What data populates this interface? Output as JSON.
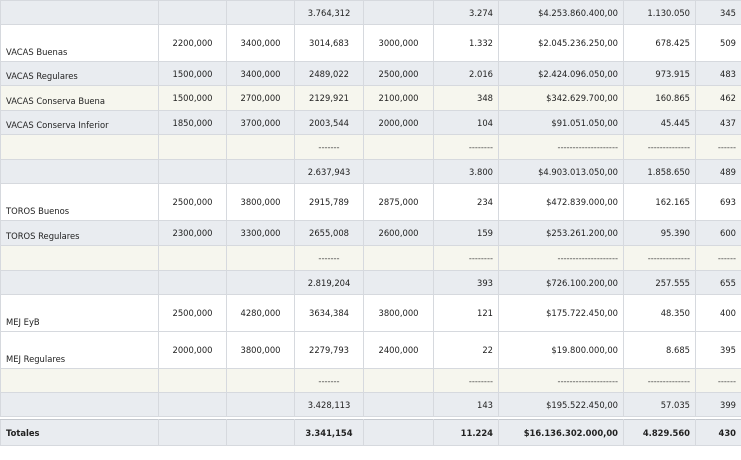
{
  "rows": [
    {
      "style": "grey",
      "h": 24,
      "label": "",
      "c1": "",
      "c2": "",
      "c3": "3.764,312",
      "c4": "",
      "c5": "3.274",
      "c6": "$4.253.860.400,00",
      "c7": "1.130.050",
      "c8": "345"
    },
    {
      "style": "white",
      "h": 37,
      "label": "VACAS Buenas",
      "c1": "2200,000",
      "c2": "3400,000",
      "c3": "3014,683",
      "c4": "3000,000",
      "c5": "1.332",
      "c6": "$2.045.236.250,00",
      "c7": "678.425",
      "c8": "509"
    },
    {
      "style": "grey",
      "h": 24,
      "label": "VACAS Regulares",
      "c1": "1500,000",
      "c2": "3400,000",
      "c3": "2489,022",
      "c4": "2500,000",
      "c5": "2.016",
      "c6": "$2.424.096.050,00",
      "c7": "973.915",
      "c8": "483"
    },
    {
      "style": "cream",
      "h": 25,
      "label": "VACAS Conserva Buena",
      "c1": "1500,000",
      "c2": "2700,000",
      "c3": "2129,921",
      "c4": "2100,000",
      "c5": "348",
      "c6": "$342.629.700,00",
      "c7": "160.865",
      "c8": "462"
    },
    {
      "style": "grey",
      "h": 24,
      "label": "VACAS Conserva Inferior",
      "c1": "1850,000",
      "c2": "3700,000",
      "c3": "2003,544",
      "c4": "2000,000",
      "c5": "104",
      "c6": "$91.051.050,00",
      "c7": "45.445",
      "c8": "437"
    },
    {
      "style": "cream",
      "h": 25,
      "sep": true,
      "label": "",
      "c1": "",
      "c2": "",
      "c3": "-------",
      "c4": "",
      "c5": "--------",
      "c6": "--------------------",
      "c7": "--------------",
      "c8": "------"
    },
    {
      "style": "grey",
      "h": 24,
      "label": "",
      "c1": "",
      "c2": "",
      "c3": "2.637,943",
      "c4": "",
      "c5": "3.800",
      "c6": "$4.903.013.050,00",
      "c7": "1.858.650",
      "c8": "489"
    },
    {
      "style": "white",
      "h": 37,
      "label": "TOROS Buenos",
      "c1": "2500,000",
      "c2": "3800,000",
      "c3": "2915,789",
      "c4": "2875,000",
      "c5": "234",
      "c6": "$472.839.000,00",
      "c7": "162.165",
      "c8": "693"
    },
    {
      "style": "grey",
      "h": 25,
      "label": "TOROS Regulares",
      "c1": "2300,000",
      "c2": "3300,000",
      "c3": "2655,008",
      "c4": "2600,000",
      "c5": "159",
      "c6": "$253.261.200,00",
      "c7": "95.390",
      "c8": "600"
    },
    {
      "style": "cream",
      "h": 25,
      "sep": true,
      "label": "",
      "c1": "",
      "c2": "",
      "c3": "-------",
      "c4": "",
      "c5": "--------",
      "c6": "--------------------",
      "c7": "--------------",
      "c8": "------"
    },
    {
      "style": "grey",
      "h": 24,
      "label": "",
      "c1": "",
      "c2": "",
      "c3": "2.819,204",
      "c4": "",
      "c5": "393",
      "c6": "$726.100.200,00",
      "c7": "257.555",
      "c8": "655"
    },
    {
      "style": "white",
      "h": 37,
      "label": "MEJ EyB",
      "c1": "2500,000",
      "c2": "4280,000",
      "c3": "3634,384",
      "c4": "3800,000",
      "c5": "121",
      "c6": "$175.722.450,00",
      "c7": "48.350",
      "c8": "400"
    },
    {
      "style": "white",
      "h": 37,
      "label": "MEJ Regulares",
      "c1": "2000,000",
      "c2": "3800,000",
      "c3": "2279,793",
      "c4": "2400,000",
      "c5": "22",
      "c6": "$19.800.000,00",
      "c7": "8.685",
      "c8": "395"
    },
    {
      "style": "cream",
      "h": 24,
      "sep": true,
      "label": "",
      "c1": "",
      "c2": "",
      "c3": "-------",
      "c4": "",
      "c5": "--------",
      "c6": "--------------------",
      "c7": "--------------",
      "c8": "------"
    },
    {
      "style": "grey",
      "h": 24,
      "label": "",
      "c1": "",
      "c2": "",
      "c3": "3.428,113",
      "c4": "",
      "c5": "143",
      "c6": "$195.522.450,00",
      "c7": "57.035",
      "c8": "399"
    }
  ],
  "totals": {
    "label": "Totales",
    "c1": "",
    "c2": "",
    "c3": "3.341,154",
    "c4": "",
    "c5": "11.224",
    "c6": "$16.136.302.000,00",
    "c7": "4.829.560",
    "c8": "430"
  }
}
